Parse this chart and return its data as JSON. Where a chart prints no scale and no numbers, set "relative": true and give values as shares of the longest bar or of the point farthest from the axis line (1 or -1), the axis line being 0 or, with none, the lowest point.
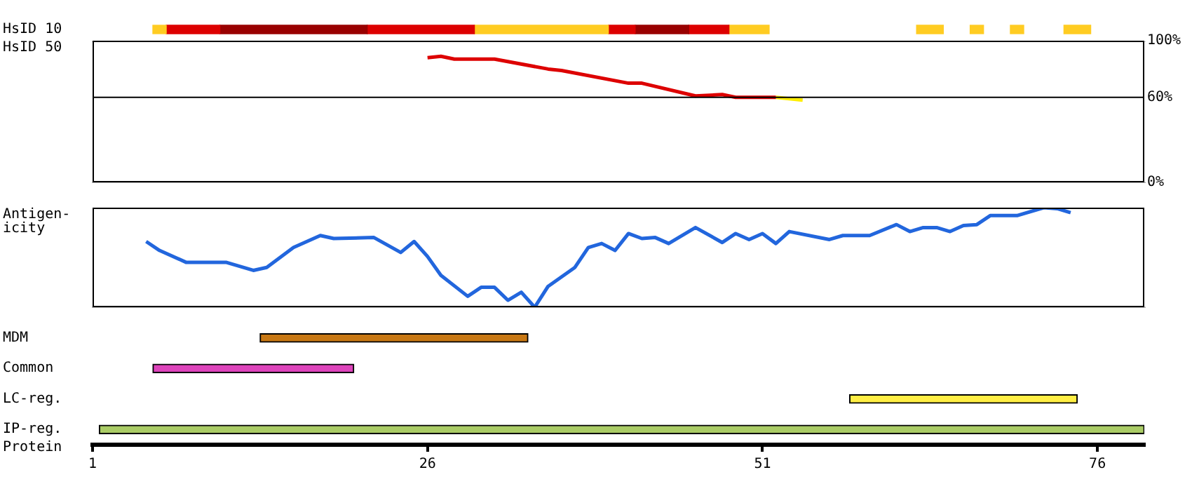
{
  "chart_data": [
    {
      "type": "bar",
      "orientation": "horizontal",
      "tick_labels": false,
      "categories": [
        "HsID 10"
      ],
      "xlim": [
        1,
        79.5
      ],
      "series": [
        {
          "color": "#ffcc22",
          "base": [
            5.5
          ],
          "values": [
            1
          ]
        },
        {
          "color": "#dd0000",
          "base": [
            6.5
          ],
          "values": [
            4
          ]
        },
        {
          "color": "#990000",
          "base": [
            10.5
          ],
          "values": [
            11
          ]
        },
        {
          "color": "#dd0000",
          "base": [
            21.5
          ],
          "values": [
            8
          ]
        },
        {
          "color": "#ffcc22",
          "base": [
            29.5
          ],
          "values": [
            10
          ]
        },
        {
          "color": "#dd0000",
          "base": [
            39.5
          ],
          "values": [
            2
          ]
        },
        {
          "color": "#990000",
          "base": [
            41.5
          ],
          "values": [
            4
          ]
        },
        {
          "color": "#dd0000",
          "base": [
            45.5
          ],
          "values": [
            3
          ]
        },
        {
          "color": "#ffcc22",
          "base": [
            48.5
          ],
          "values": [
            3
          ]
        },
        {
          "color": "#ffcc22",
          "base": [
            62.5
          ],
          "values": [
            2
          ]
        },
        {
          "color": "#ffcc22",
          "base": [
            66.5
          ],
          "values": [
            1
          ]
        },
        {
          "color": "#ffcc22",
          "base": [
            69.5
          ],
          "values": [
            1
          ]
        },
        {
          "color": "#ffcc22",
          "base": [
            73.5
          ],
          "values": [
            2
          ]
        }
      ]
    },
    {
      "type": "line",
      "ylabel": "HsID 50",
      "tick_labels": "y",
      "marker": "none",
      "xlim": [
        1,
        79.5
      ],
      "ylim": [
        0,
        100
      ],
      "yticks": [
        {
          "value": 0,
          "label": "0%"
        },
        {
          "value": 60,
          "label": "60%"
        },
        {
          "value": 100,
          "label": "100%"
        }
      ],
      "ref_lines": [
        {
          "axis": "y",
          "value": 60,
          "color": "#000000"
        }
      ],
      "series": [
        {
          "color": "#dd0000",
          "x": [
            26,
            27,
            28,
            31,
            35,
            36,
            41,
            42,
            46,
            48,
            49,
            52
          ],
          "values": [
            88,
            89,
            87,
            87,
            80,
            79,
            70,
            70,
            61,
            62,
            60,
            60
          ]
        },
        {
          "color": "#ffee00",
          "x": [
            52,
            54
          ],
          "values": [
            60,
            58
          ]
        }
      ]
    },
    {
      "type": "line",
      "ylabel": "Antigen-icity",
      "relative": true,
      "tick_labels": false,
      "marker": "none",
      "xlim": [
        1,
        79.5
      ],
      "series": [
        {
          "color": "#2266dd",
          "x": [
            5,
            6,
            8,
            11,
            13,
            14,
            16,
            18,
            19,
            22,
            24,
            25,
            26,
            27,
            29,
            30,
            31,
            32,
            33,
            34,
            35,
            37,
            38,
            39,
            40,
            41,
            42,
            43,
            44,
            46,
            48,
            49,
            50,
            51,
            52,
            53,
            56,
            57,
            59,
            61,
            62,
            63,
            64,
            65,
            66,
            67,
            68,
            70,
            72,
            73,
            74
          ],
          "values": [
            0.66,
            0.57,
            0.45,
            0.45,
            0.37,
            0.4,
            0.6,
            0.72,
            0.69,
            0.7,
            0.55,
            0.66,
            0.51,
            0.32,
            0.11,
            0.2,
            0.2,
            0.07,
            0.15,
            0,
            0.21,
            0.4,
            0.6,
            0.64,
            0.57,
            0.74,
            0.69,
            0.7,
            0.64,
            0.8,
            0.65,
            0.74,
            0.68,
            0.74,
            0.64,
            0.76,
            0.68,
            0.72,
            0.72,
            0.83,
            0.76,
            0.8,
            0.8,
            0.76,
            0.82,
            0.83,
            0.92,
            0.92,
            1,
            0.99,
            0.95
          ]
        }
      ]
    },
    {
      "type": "bar",
      "orientation": "horizontal",
      "xlabel": "Protein",
      "tick_labels": "x",
      "categories": [
        "MDM",
        "Common",
        "LC-reg.",
        "IP-reg."
      ],
      "base": [
        13.5,
        5.5,
        57.5,
        1.5
      ],
      "values": [
        20,
        15,
        17,
        78
      ],
      "colors": [
        "#c87814",
        "#dd44bb",
        "#ffee44",
        "#aacc66"
      ],
      "xlim": [
        1,
        79.5
      ],
      "xticks": [
        1,
        26,
        51,
        76
      ]
    }
  ]
}
